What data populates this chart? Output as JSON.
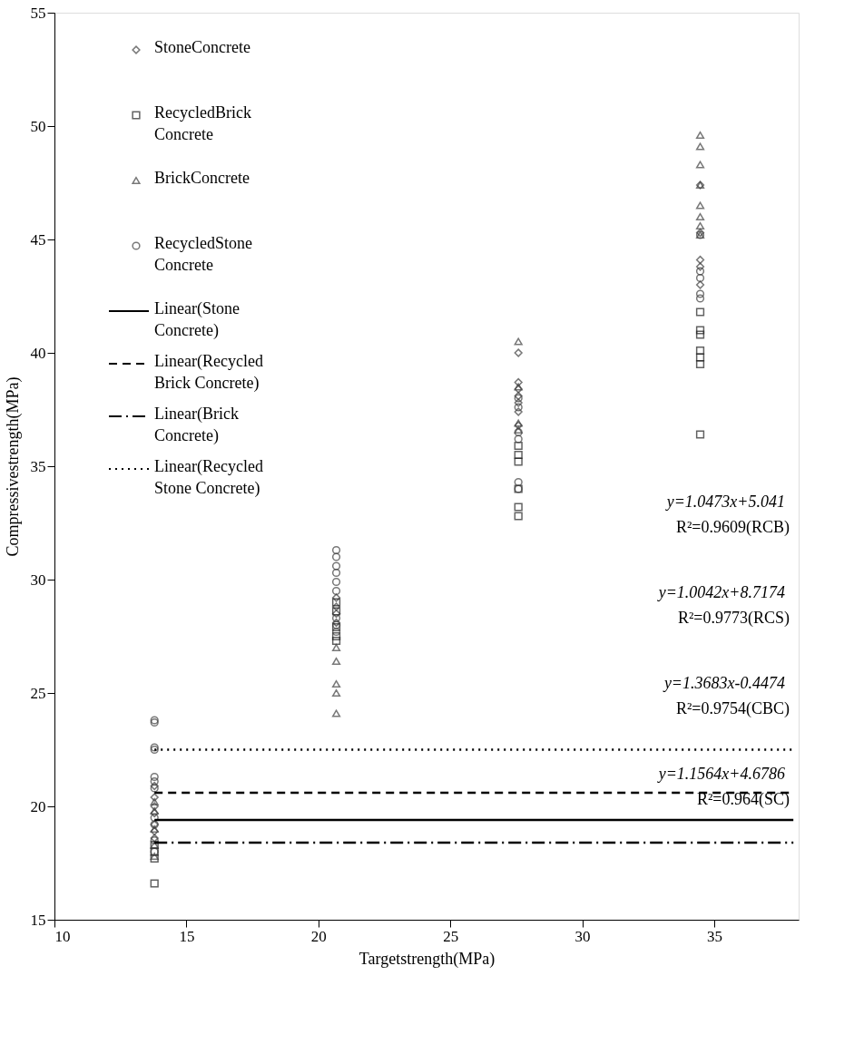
{
  "chart_data": {
    "type": "scatter",
    "xlabel": "Targetstrength(MPa)",
    "ylabel": "Compressivestrength(MPa)",
    "xlim": [
      10,
      38.2
    ],
    "xticks": [
      10,
      15,
      20,
      25,
      30,
      35
    ],
    "ylim": [
      15,
      55
    ],
    "yticks": [
      15,
      20,
      25,
      30,
      35,
      40,
      45,
      50,
      55
    ],
    "grid": false,
    "legend": "top left",
    "series": [
      {
        "name": "StoneConcrete",
        "type": "scatter",
        "marker": "diamond",
        "color": "#404040",
        "x": [
          13.79,
          13.79,
          13.79,
          13.79,
          13.79,
          13.79,
          13.79,
          20.68,
          20.68,
          20.68,
          20.68,
          27.58,
          27.58,
          27.58,
          27.58,
          27.58,
          27.58,
          27.58,
          34.47,
          34.47,
          34.47,
          34.47,
          34.47
        ],
        "values": [
          20.9,
          20.4,
          20.0,
          19.7,
          19.2,
          18.9,
          18.6,
          29.2,
          28.8,
          28.5,
          28.1,
          40.0,
          38.7,
          38.4,
          38.1,
          37.8,
          37.4,
          36.8,
          47.4,
          45.3,
          44.1,
          43.8,
          43.0
        ]
      },
      {
        "name": "RecycledBrick Concrete",
        "type": "scatter",
        "marker": "square",
        "color": "#202020",
        "x": [
          13.79,
          13.79,
          13.79,
          13.79,
          20.68,
          20.68,
          20.68,
          20.68,
          20.68,
          27.58,
          27.58,
          27.58,
          27.58,
          27.58,
          27.58,
          34.47,
          34.47,
          34.47,
          34.47,
          34.47,
          34.47,
          34.47
        ],
        "values": [
          18.3,
          18.0,
          17.7,
          16.6,
          29.0,
          28.6,
          27.9,
          27.5,
          27.3,
          35.9,
          35.5,
          35.2,
          34.0,
          33.2,
          32.8,
          41.8,
          41.0,
          40.8,
          40.1,
          39.8,
          39.5,
          36.4
        ]
      },
      {
        "name": "BrickConcrete",
        "type": "scatter",
        "marker": "triangle",
        "color": "#404040",
        "x": [
          13.79,
          13.79,
          13.79,
          13.79,
          13.79,
          20.68,
          20.68,
          20.68,
          20.68,
          20.68,
          27.58,
          27.58,
          27.58,
          27.58,
          34.47,
          34.47,
          34.47,
          34.47,
          34.47,
          34.47,
          34.47,
          34.47
        ],
        "values": [
          20.2,
          19.8,
          19.0,
          18.3,
          17.8,
          27.0,
          26.4,
          25.4,
          25.0,
          24.1,
          40.5,
          38.5,
          36.9,
          36.6,
          49.6,
          49.1,
          48.3,
          47.4,
          46.5,
          46.0,
          45.6,
          45.2
        ]
      },
      {
        "name": "RecycledStone Concrete",
        "type": "scatter",
        "marker": "circle",
        "color": "#404040",
        "x": [
          13.79,
          13.79,
          13.79,
          13.79,
          13.79,
          13.79,
          13.79,
          13.79,
          13.79,
          13.79,
          13.79,
          20.68,
          20.68,
          20.68,
          20.68,
          20.68,
          20.68,
          20.68,
          20.68,
          20.68,
          27.58,
          27.58,
          27.58,
          27.58,
          27.58,
          27.58,
          34.47,
          34.47,
          34.47,
          34.47,
          34.47
        ],
        "values": [
          23.8,
          23.7,
          22.6,
          22.5,
          21.3,
          21.1,
          20.8,
          19.5,
          19.2,
          18.5,
          18.0,
          31.3,
          31.0,
          30.6,
          30.3,
          29.9,
          29.5,
          28.3,
          28.0,
          27.7,
          38.0,
          37.6,
          36.5,
          36.2,
          34.3,
          34.0,
          45.2,
          43.6,
          43.3,
          42.6,
          42.4
        ]
      },
      {
        "name": "Linear(Stone Concrete)",
        "type": "line",
        "line_style": "solid",
        "color": "#000000",
        "x": [
          13.79,
          38
        ],
        "values": [
          19.4,
          19.4
        ]
      },
      {
        "name": "Linear(Recycled Brick Concrete)",
        "type": "line",
        "line_style": "dashed",
        "color": "#000000",
        "x": [
          13.79,
          38
        ],
        "values": [
          20.6,
          20.6
        ]
      },
      {
        "name": "Linear(Brick Concrete)",
        "type": "line",
        "line_style": "dashdot",
        "color": "#000000",
        "x": [
          13.79,
          38
        ],
        "values": [
          18.4,
          18.4
        ]
      },
      {
        "name": "Linear(Recycled Stone Concrete)",
        "type": "line",
        "line_style": "dotted",
        "color": "#000000",
        "x": [
          13.79,
          38
        ],
        "values": [
          22.5,
          22.5
        ]
      }
    ],
    "annotations": [
      "y=1.0473x+5.041",
      "R²=0.9609(RCB)",
      "y=1.0042x+8.7174",
      "R²=0.9773(RCS)",
      "y=1.3683x-0.4474",
      "R²=0.9754(CBC)",
      "y=1.1564x+4.6786",
      "R²=0.964(SC)"
    ]
  }
}
